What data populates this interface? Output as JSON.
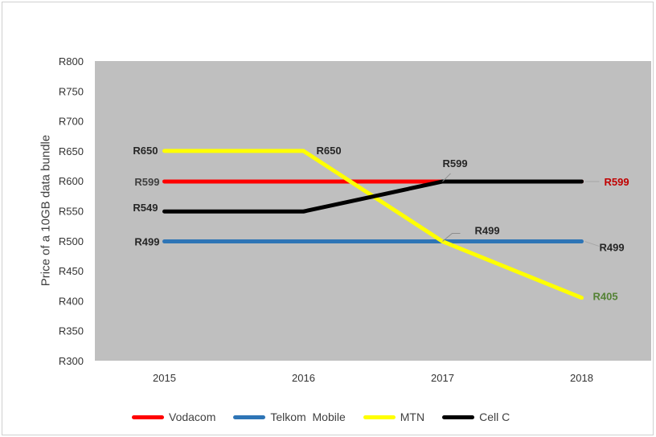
{
  "chart_data": {
    "type": "line",
    "title": "",
    "xlabel": "",
    "ylabel": "Price  of a 10GB data bundle",
    "categories": [
      "2015",
      "2016",
      "2017",
      "2018"
    ],
    "ylim": [
      300,
      800
    ],
    "yticks": [
      300,
      350,
      400,
      450,
      500,
      550,
      600,
      650,
      700,
      750,
      800
    ],
    "ytick_labels": [
      "R300",
      "R350",
      "R400",
      "R450",
      "R500",
      "R550",
      "R600",
      "R650",
      "R700",
      "R750",
      "R800"
    ],
    "legend_position": "bottom",
    "series": [
      {
        "name": "Vodacom",
        "color": "#ff0000",
        "values": [
          599,
          599,
          599,
          599
        ],
        "labels": [
          {
            "i": 0,
            "text": "R599",
            "color": "#404040",
            "bold": false
          },
          {
            "i": 3,
            "text": "R599",
            "color": "#c00000",
            "bold": true
          }
        ]
      },
      {
        "name": "Telkom  Mobile",
        "color": "#2e75b6",
        "values": [
          499,
          499,
          499,
          499
        ],
        "labels": [
          {
            "i": 0,
            "text": "R499",
            "color": "#262626",
            "bold": true
          },
          {
            "i": 3,
            "text": "R499",
            "color": "#262626",
            "bold": true
          }
        ]
      },
      {
        "name": "MTN",
        "color": "#ffff00",
        "values": [
          650,
          650,
          499,
          405
        ],
        "labels": [
          {
            "i": 0,
            "text": "R650",
            "color": "#262626",
            "bold": true
          },
          {
            "i": 1,
            "text": "R650",
            "color": "#262626",
            "bold": true
          },
          {
            "i": 2,
            "text": "R499",
            "color": "#262626",
            "bold": true
          },
          {
            "i": 3,
            "text": "R405",
            "color": "#548235",
            "bold": true
          }
        ]
      },
      {
        "name": "Cell C",
        "color": "#000000",
        "values": [
          549,
          549,
          599,
          599
        ],
        "labels": [
          {
            "i": 0,
            "text": "R549",
            "color": "#262626",
            "bold": true
          },
          {
            "i": 2,
            "text": "R599",
            "color": "#262626",
            "bold": true
          }
        ]
      }
    ]
  }
}
